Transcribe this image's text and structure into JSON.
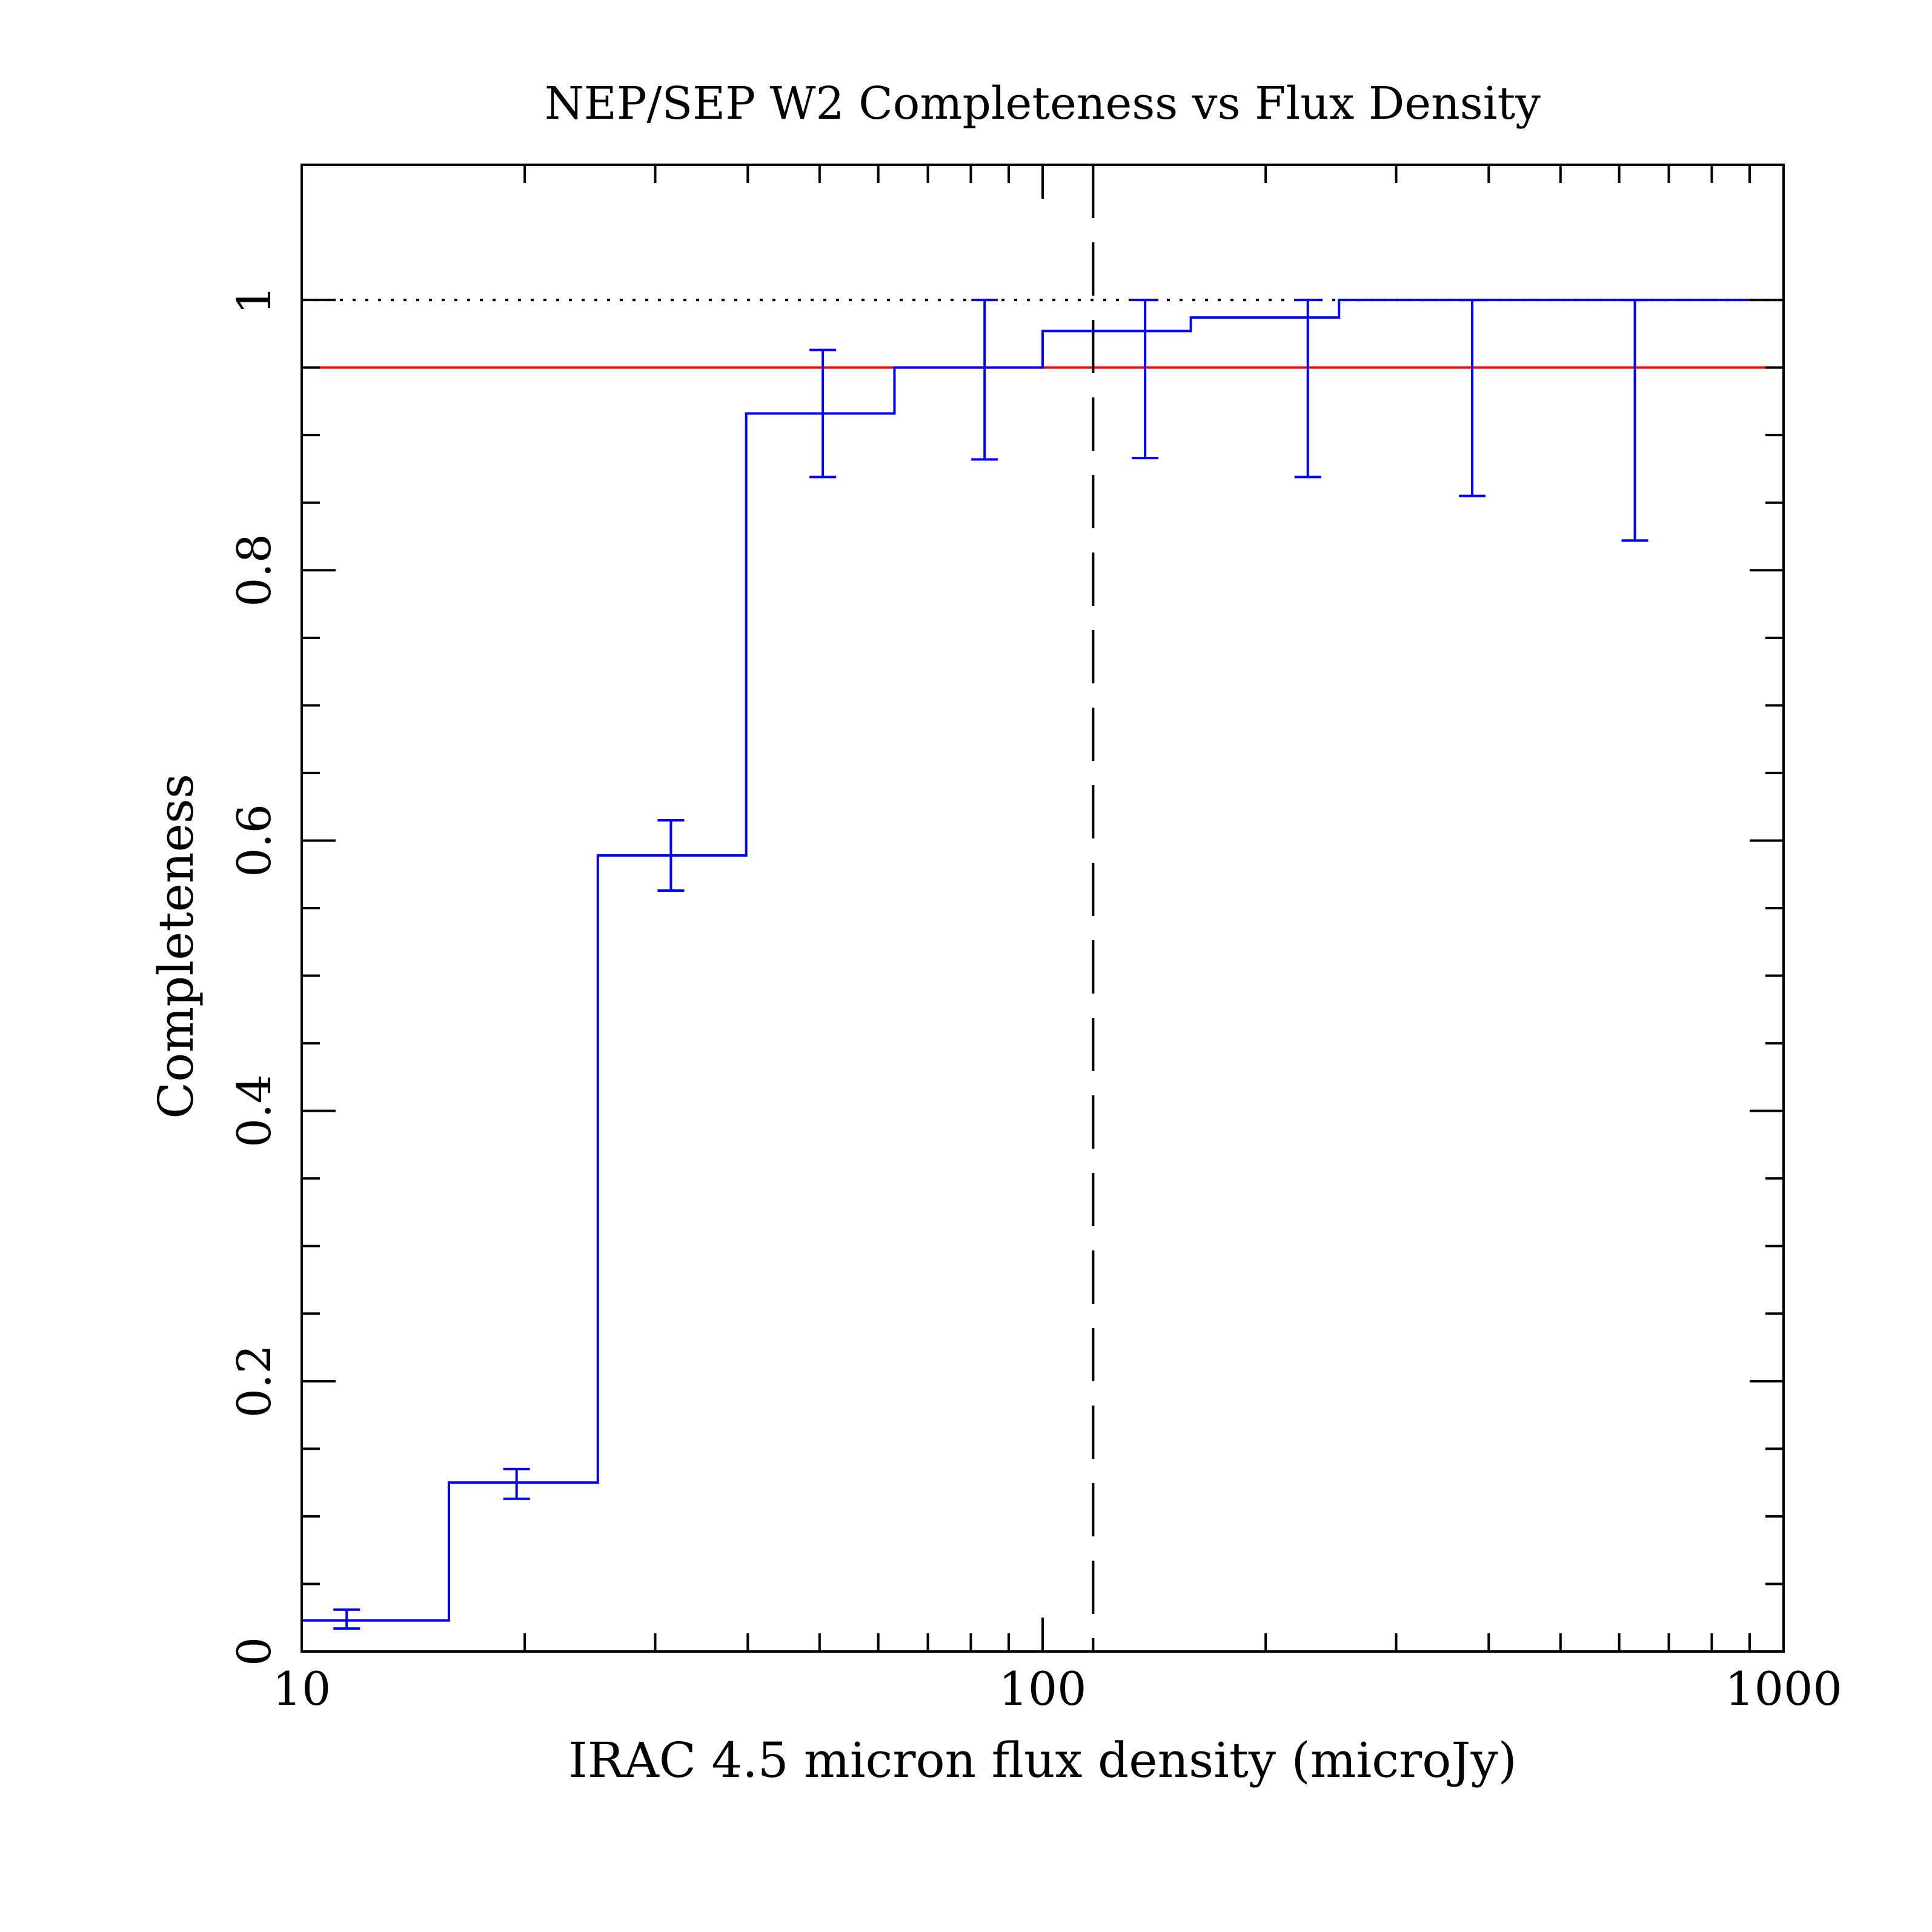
{
  "chart_data": {
    "type": "line",
    "title": "NEP/SEP W2 Completeness vs Flux Density",
    "xlabel": "IRAC 4.5 micron flux density (microJy)",
    "ylabel": "Completeness",
    "x_scale": "log",
    "xlim": [
      10,
      1000
    ],
    "ylim": [
      0,
      1.1
    ],
    "x_tick_labels": [
      "10",
      "100",
      "1000"
    ],
    "x_tick_values": [
      10,
      100,
      1000
    ],
    "y_tick_labels": [
      "0",
      "0.2",
      "0.4",
      "0.6",
      "0.8",
      "1"
    ],
    "y_tick_values": [
      0,
      0.2,
      0.4,
      0.6,
      0.8,
      1
    ],
    "grid": false,
    "legend": null,
    "series": [
      {
        "style": "step histogram with error bars",
        "color": "#0000ff",
        "bin_edges": [
          10,
          15.8,
          25.1,
          39.8,
          63.1,
          100,
          158.5,
          251.2,
          398.1,
          631,
          1000
        ],
        "values": [
          0.023,
          0.125,
          0.589,
          0.916,
          0.95,
          0.977,
          0.987,
          1.0,
          1.0,
          1.0
        ],
        "error_x": [
          11.5,
          19.5,
          31.5,
          50.5,
          83.5,
          137.5,
          228,
          380,
          630
        ],
        "error_low": [
          0.017,
          0.113,
          0.563,
          0.869,
          0.882,
          0.883,
          0.869,
          0.855,
          0.822
        ],
        "error_high": [
          0.031,
          0.135,
          0.615,
          0.963,
          1.0,
          1.0,
          1.0,
          1.0,
          1.0
        ]
      }
    ],
    "reference_lines": [
      {
        "orientation": "horizontal",
        "y": 0.95,
        "style": "solid",
        "color": "#ff0000"
      },
      {
        "orientation": "horizontal",
        "y": 1.0,
        "style": "dotted",
        "color": "#000000"
      },
      {
        "orientation": "vertical",
        "x": 117,
        "style": "dashed",
        "color": "#000000"
      }
    ]
  }
}
